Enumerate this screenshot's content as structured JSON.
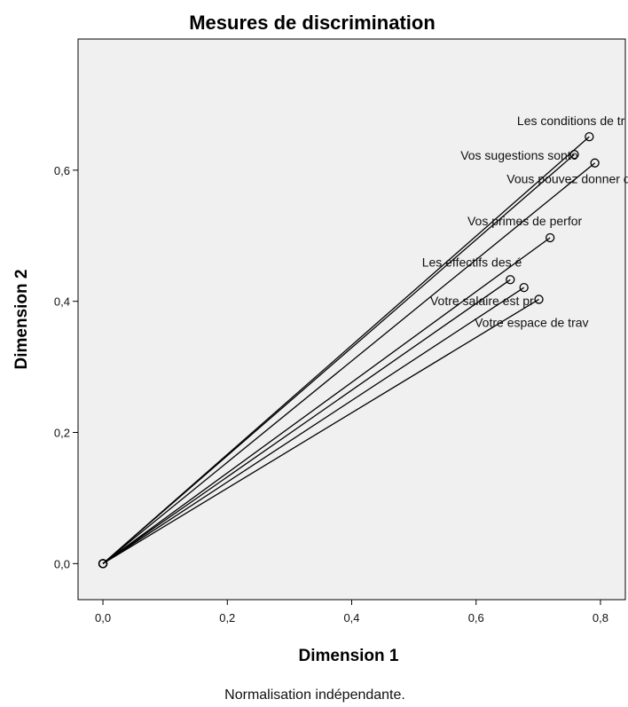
{
  "chart_data": {
    "type": "scatter",
    "title": "Mesures de discrimination",
    "xlabel": "Dimension 1",
    "ylabel": "Dimension 2",
    "footnote": "Normalisation indépendante.",
    "xlim": [
      -0.04,
      0.84
    ],
    "ylim": [
      -0.055,
      0.8
    ],
    "xticks": [
      0.0,
      0.2,
      0.4,
      0.6,
      0.8
    ],
    "yticks": [
      0.0,
      0.2,
      0.4,
      0.6
    ],
    "xtick_labels": [
      "0,0",
      "0,2",
      "0,4",
      "0,6",
      "0,8"
    ],
    "ytick_labels": [
      "0,0",
      "0,2",
      "0,4",
      "0,6"
    ],
    "origin": [
      0.0,
      0.0
    ],
    "vectors_from_origin": true,
    "grid": false,
    "background": "#f0f0f0",
    "line_color": "#000000",
    "points": [
      {
        "label": "Les conditions de tr",
        "x": 0.782,
        "y": 0.651
      },
      {
        "label": "Vos sugestions sonto",
        "x": 0.758,
        "y": 0.624
      },
      {
        "label": "Vous pouvez donner d",
        "x": 0.791,
        "y": 0.611
      },
      {
        "label": "Vos primes de perfor",
        "x": 0.719,
        "y": 0.497
      },
      {
        "label": "Les effectifs des é",
        "x": 0.655,
        "y": 0.433
      },
      {
        "label": "Votre salaire est pr",
        "x": 0.677,
        "y": 0.421
      },
      {
        "label": "Votre espace de trav",
        "x": 0.701,
        "y": 0.403
      }
    ]
  }
}
